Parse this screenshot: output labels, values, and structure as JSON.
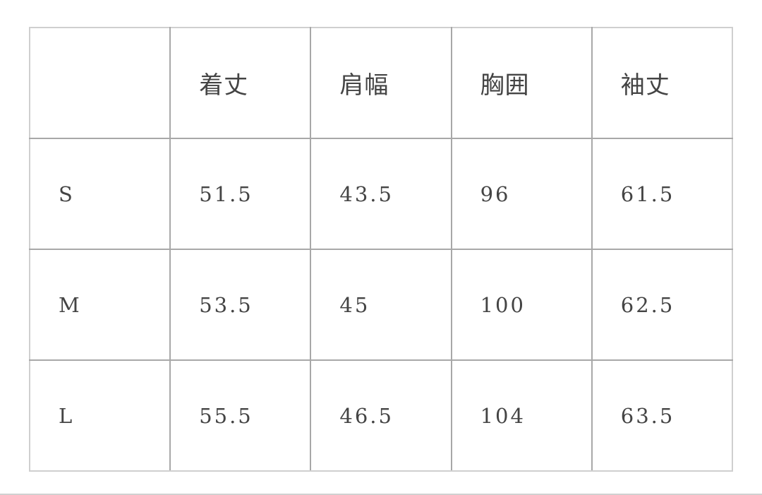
{
  "table": {
    "headers": [
      "",
      "着丈",
      "肩幅",
      "胸囲",
      "袖丈"
    ],
    "rows": [
      {
        "size": "S",
        "values": [
          "51.5",
          "43.5",
          "96",
          "61.5"
        ]
      },
      {
        "size": "M",
        "values": [
          "53.5",
          "45",
          "100",
          "62.5"
        ]
      },
      {
        "size": "L",
        "values": [
          "55.5",
          "46.5",
          "104",
          "63.5"
        ]
      }
    ]
  }
}
